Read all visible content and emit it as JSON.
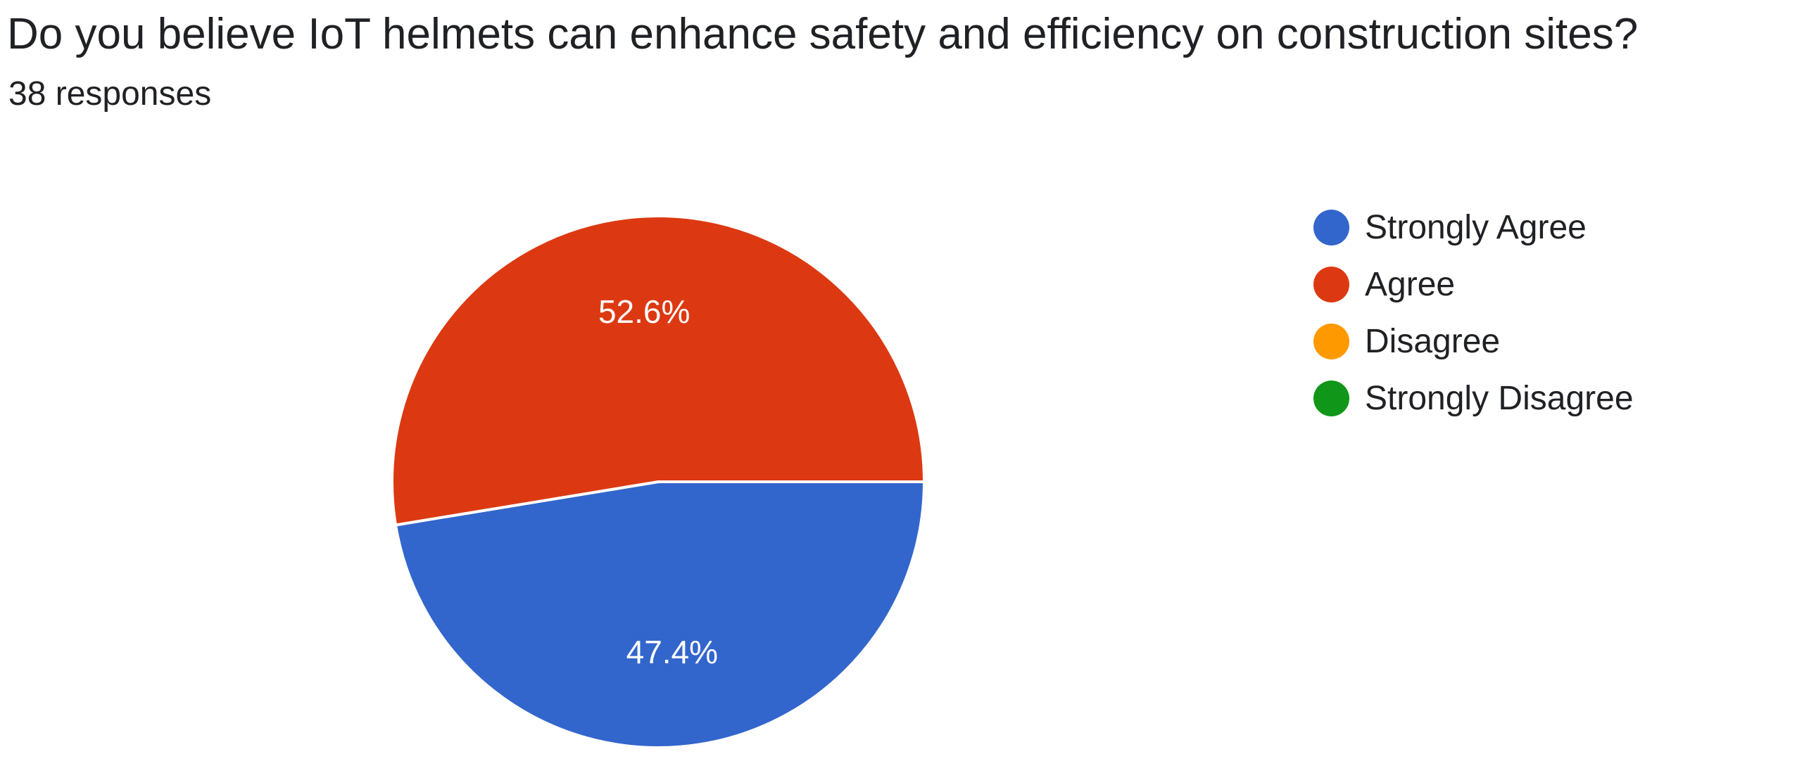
{
  "question": {
    "title": "Do you believe IoT helmets can enhance safety and efficiency on construction sites?",
    "response_count": "38 responses"
  },
  "chart_data": {
    "type": "pie",
    "title": "Do you believe IoT helmets can enhance safety and efficiency on construction sites?",
    "categories": [
      "Strongly Agree",
      "Agree",
      "Disagree",
      "Strongly Disagree"
    ],
    "values": [
      47.4,
      52.6,
      0,
      0
    ],
    "value_labels": [
      "47.4%",
      "52.6%",
      "",
      ""
    ],
    "colors": [
      "#3366cc",
      "#dc3912",
      "#ff9900",
      "#109618"
    ],
    "legend_position": "right"
  }
}
